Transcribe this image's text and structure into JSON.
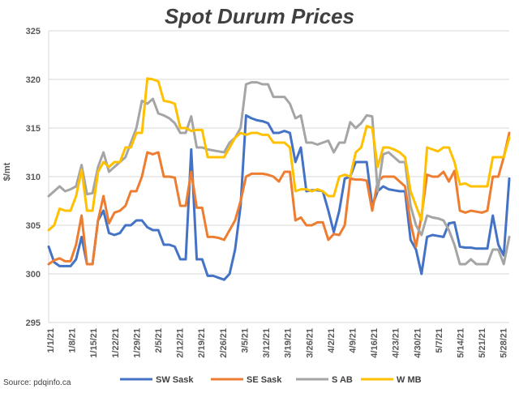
{
  "chart_data": {
    "type": "line",
    "title": "Spot Durum Prices",
    "ylabel": "$/mt",
    "xlabel": "",
    "ylim": [
      295,
      325
    ],
    "yticks": [
      295,
      300,
      305,
      310,
      315,
      320,
      325
    ],
    "grid": true,
    "legend_position": "bottom",
    "source": "Source: pdqinfo.ca",
    "x_ticks": [
      "1/1/21",
      "1/8/21",
      "1/15/21",
      "1/22/21",
      "1/29/21",
      "2/5/21",
      "2/12/21",
      "2/19/21",
      "2/26/21",
      "3/5/21",
      "3/12/21",
      "3/19/21",
      "3/26/21",
      "4/2/21",
      "4/9/21",
      "4/16/21",
      "4/23/21",
      "4/30/21",
      "5/7/21",
      "5/14/21",
      "5/21/21",
      "5/28/21"
    ],
    "series": [
      {
        "name": "SW Sask",
        "color": "#4472C4",
        "values": [
          302.8,
          301.2,
          300.8,
          300.8,
          300.8,
          301.5,
          303.8,
          301.0,
          301.0,
          305.5,
          306.5,
          304.2,
          304.0,
          304.2,
          305.0,
          305.0,
          305.5,
          305.5,
          304.8,
          304.5,
          304.5,
          303.0,
          303.0,
          302.8,
          301.5,
          301.5,
          312.8,
          301.5,
          301.5,
          299.8,
          299.8,
          299.6,
          299.4,
          300.0,
          302.5,
          307.0,
          316.3,
          316.0,
          315.8,
          315.7,
          315.5,
          314.5,
          314.5,
          314.7,
          314.5,
          311.5,
          313.0,
          308.5,
          308.6,
          308.6,
          308.5,
          306.5,
          304.3,
          306.5,
          309.8,
          310.0,
          311.5,
          311.5,
          311.5,
          307.0,
          308.5,
          309.0,
          308.7,
          308.6,
          308.5,
          308.5,
          303.5,
          302.5,
          300.0,
          303.8,
          304.0,
          303.9,
          303.8,
          305.2,
          305.3,
          302.8,
          302.7,
          302.7,
          302.6,
          302.6,
          302.6,
          306.0,
          303.0,
          301.9,
          309.8
        ]
      },
      {
        "name": "SE Sask",
        "color": "#ED7D31",
        "values": [
          301.0,
          301.4,
          301.6,
          301.3,
          301.3,
          303.0,
          306.0,
          301.0,
          301.0,
          305.5,
          308.0,
          305.2,
          306.3,
          306.5,
          307.0,
          308.5,
          308.5,
          310.0,
          312.5,
          312.3,
          312.5,
          310.0,
          310.0,
          309.9,
          307.0,
          307.0,
          310.5,
          306.8,
          306.8,
          303.8,
          303.8,
          303.7,
          303.5,
          304.5,
          305.5,
          307.5,
          310.0,
          310.3,
          310.3,
          310.3,
          310.2,
          310.0,
          309.5,
          310.5,
          310.5,
          305.5,
          305.8,
          305.0,
          305.0,
          305.3,
          305.3,
          303.5,
          304.1,
          304.0,
          305.0,
          309.8,
          309.7,
          309.7,
          309.6,
          306.5,
          309.5,
          310.0,
          310.0,
          310.0,
          309.5,
          309.0,
          305.3,
          302.8,
          306.0,
          310.2,
          310.0,
          310.0,
          310.5,
          309.5,
          310.6,
          306.5,
          306.3,
          306.5,
          306.4,
          306.3,
          306.5,
          310.0,
          310.0,
          312.0,
          314.5
        ]
      },
      {
        "name": "S AB",
        "color": "#A5A5A5",
        "values": [
          308.0,
          308.5,
          309.0,
          308.5,
          308.7,
          309.0,
          311.2,
          308.2,
          308.3,
          311.0,
          312.5,
          310.5,
          311.0,
          311.5,
          312.0,
          313.5,
          315.0,
          317.8,
          317.5,
          318.0,
          316.5,
          316.3,
          316.0,
          315.5,
          314.5,
          314.5,
          316.2,
          313.0,
          313.0,
          312.8,
          312.7,
          312.6,
          312.5,
          313.5,
          314.0,
          315.0,
          319.5,
          319.7,
          319.7,
          319.5,
          319.5,
          318.2,
          318.2,
          318.2,
          317.5,
          316.0,
          316.3,
          313.5,
          313.5,
          313.3,
          313.5,
          313.7,
          312.5,
          313.5,
          313.5,
          315.6,
          315.0,
          315.5,
          316.3,
          316.2,
          308.5,
          312.3,
          312.5,
          312.0,
          311.5,
          311.5,
          307.0,
          305.0,
          304.0,
          306.0,
          305.8,
          305.7,
          305.5,
          304.5,
          303.0,
          301.0,
          301.0,
          301.5,
          301.0,
          301.0,
          301.0,
          302.5,
          302.5,
          301.0,
          303.8
        ]
      },
      {
        "name": "W MB",
        "color": "#FFC000",
        "values": [
          304.5,
          305.0,
          306.7,
          306.5,
          306.5,
          308.0,
          310.7,
          306.5,
          306.5,
          310.5,
          311.5,
          311.0,
          311.5,
          311.5,
          313.0,
          313.0,
          314.5,
          314.5,
          320.1,
          320.0,
          319.8,
          317.8,
          317.7,
          317.5,
          315.0,
          315.0,
          314.7,
          314.8,
          314.8,
          312.0,
          312.0,
          312.0,
          312.0,
          313.0,
          314.0,
          314.5,
          314.3,
          314.5,
          314.5,
          314.3,
          314.3,
          313.5,
          313.5,
          313.5,
          313.0,
          308.5,
          308.7,
          308.7,
          308.5,
          308.7,
          308.5,
          308.0,
          308.0,
          310.0,
          310.2,
          310.0,
          312.5,
          313.0,
          315.2,
          315.0,
          311.0,
          313.0,
          313.0,
          312.8,
          312.5,
          312.0,
          308.5,
          307.0,
          305.5,
          313.0,
          312.8,
          312.6,
          313.0,
          313.0,
          311.5,
          309.2,
          309.3,
          309.0,
          309.0,
          309.0,
          309.0,
          312.0,
          312.0,
          312.0,
          314.0
        ]
      }
    ]
  }
}
